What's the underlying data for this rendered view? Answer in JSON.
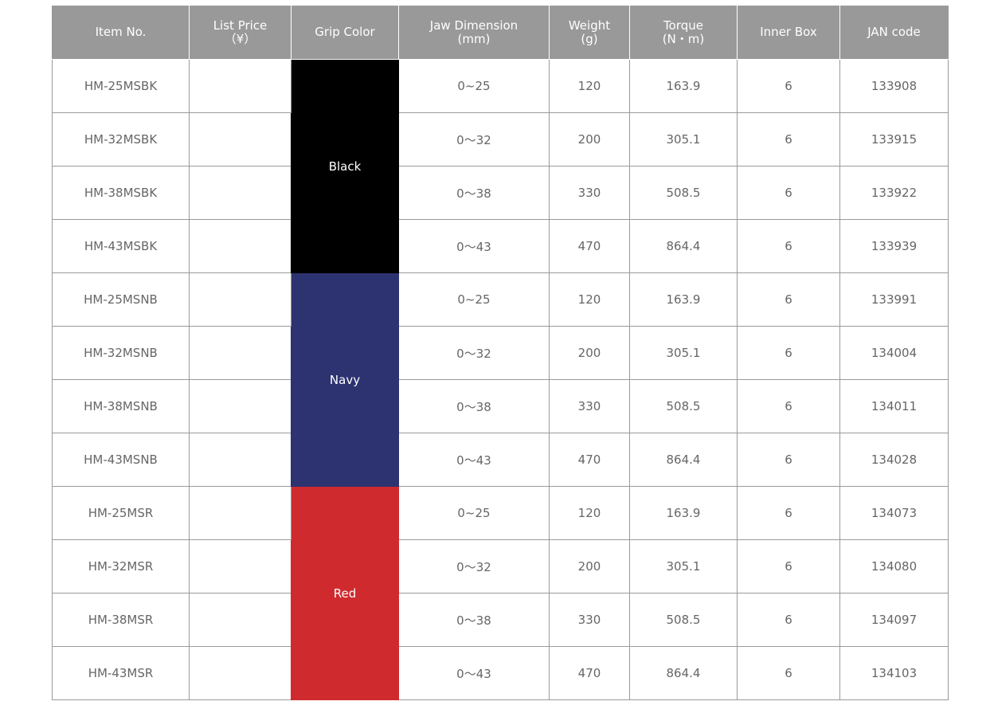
{
  "headers": [
    {
      "key": "item",
      "lines": [
        "Item No."
      ]
    },
    {
      "key": "price",
      "lines": [
        "List Price",
        "（¥）"
      ]
    },
    {
      "key": "grip",
      "lines": [
        "Grip Color"
      ]
    },
    {
      "key": "jaw",
      "lines": [
        "Jaw Dimension",
        "(mm)"
      ]
    },
    {
      "key": "weight",
      "lines": [
        "Weight",
        "(g)"
      ]
    },
    {
      "key": "torque",
      "lines": [
        "Torque",
        "(N・m)"
      ]
    },
    {
      "key": "inner",
      "lines": [
        "Inner Box"
      ]
    },
    {
      "key": "jan",
      "lines": [
        "JAN code"
      ]
    }
  ],
  "groups": [
    {
      "color": "Black",
      "hex": "#000000",
      "rows": [
        {
          "item": "HM-25MSBK",
          "price": "",
          "jaw": "0~25",
          "weight": "120",
          "torque": "163.9",
          "inner": "6",
          "jan": "133908"
        },
        {
          "item": "HM-32MSBK",
          "price": "",
          "jaw": "0～32",
          "weight": "200",
          "torque": "305.1",
          "inner": "6",
          "jan": "133915"
        },
        {
          "item": "HM-38MSBK",
          "price": "",
          "jaw": "0～38",
          "weight": "330",
          "torque": "508.5",
          "inner": "6",
          "jan": "133922"
        },
        {
          "item": "HM-43MSBK",
          "price": "",
          "jaw": "0～43",
          "weight": "470",
          "torque": "864.4",
          "inner": "6",
          "jan": "133939"
        }
      ]
    },
    {
      "color": "Navy",
      "hex": "#2c3370",
      "rows": [
        {
          "item": "HM-25MSNB",
          "price": "",
          "jaw": "0~25",
          "weight": "120",
          "torque": "163.9",
          "inner": "6",
          "jan": "133991"
        },
        {
          "item": "HM-32MSNB",
          "price": "",
          "jaw": "0～32",
          "weight": "200",
          "torque": "305.1",
          "inner": "6",
          "jan": "134004"
        },
        {
          "item": "HM-38MSNB",
          "price": "",
          "jaw": "0～38",
          "weight": "330",
          "torque": "508.5",
          "inner": "6",
          "jan": "134011"
        },
        {
          "item": "HM-43MSNB",
          "price": "",
          "jaw": "0～43",
          "weight": "470",
          "torque": "864.4",
          "inner": "6",
          "jan": "134028"
        }
      ]
    },
    {
      "color": "Red",
      "hex": "#cf2b2e",
      "rows": [
        {
          "item": "HM-25MSR",
          "price": "",
          "jaw": "0~25",
          "weight": "120",
          "torque": "163.9",
          "inner": "6",
          "jan": "134073"
        },
        {
          "item": "HM-32MSR",
          "price": "",
          "jaw": "0～32",
          "weight": "200",
          "torque": "305.1",
          "inner": "6",
          "jan": "134080"
        },
        {
          "item": "HM-38MSR",
          "price": "",
          "jaw": "0～38",
          "weight": "330",
          "torque": "508.5",
          "inner": "6",
          "jan": "134097"
        },
        {
          "item": "HM-43MSR",
          "price": "",
          "jaw": "0～43",
          "weight": "470",
          "torque": "864.4",
          "inner": "6",
          "jan": "134103"
        }
      ]
    }
  ]
}
